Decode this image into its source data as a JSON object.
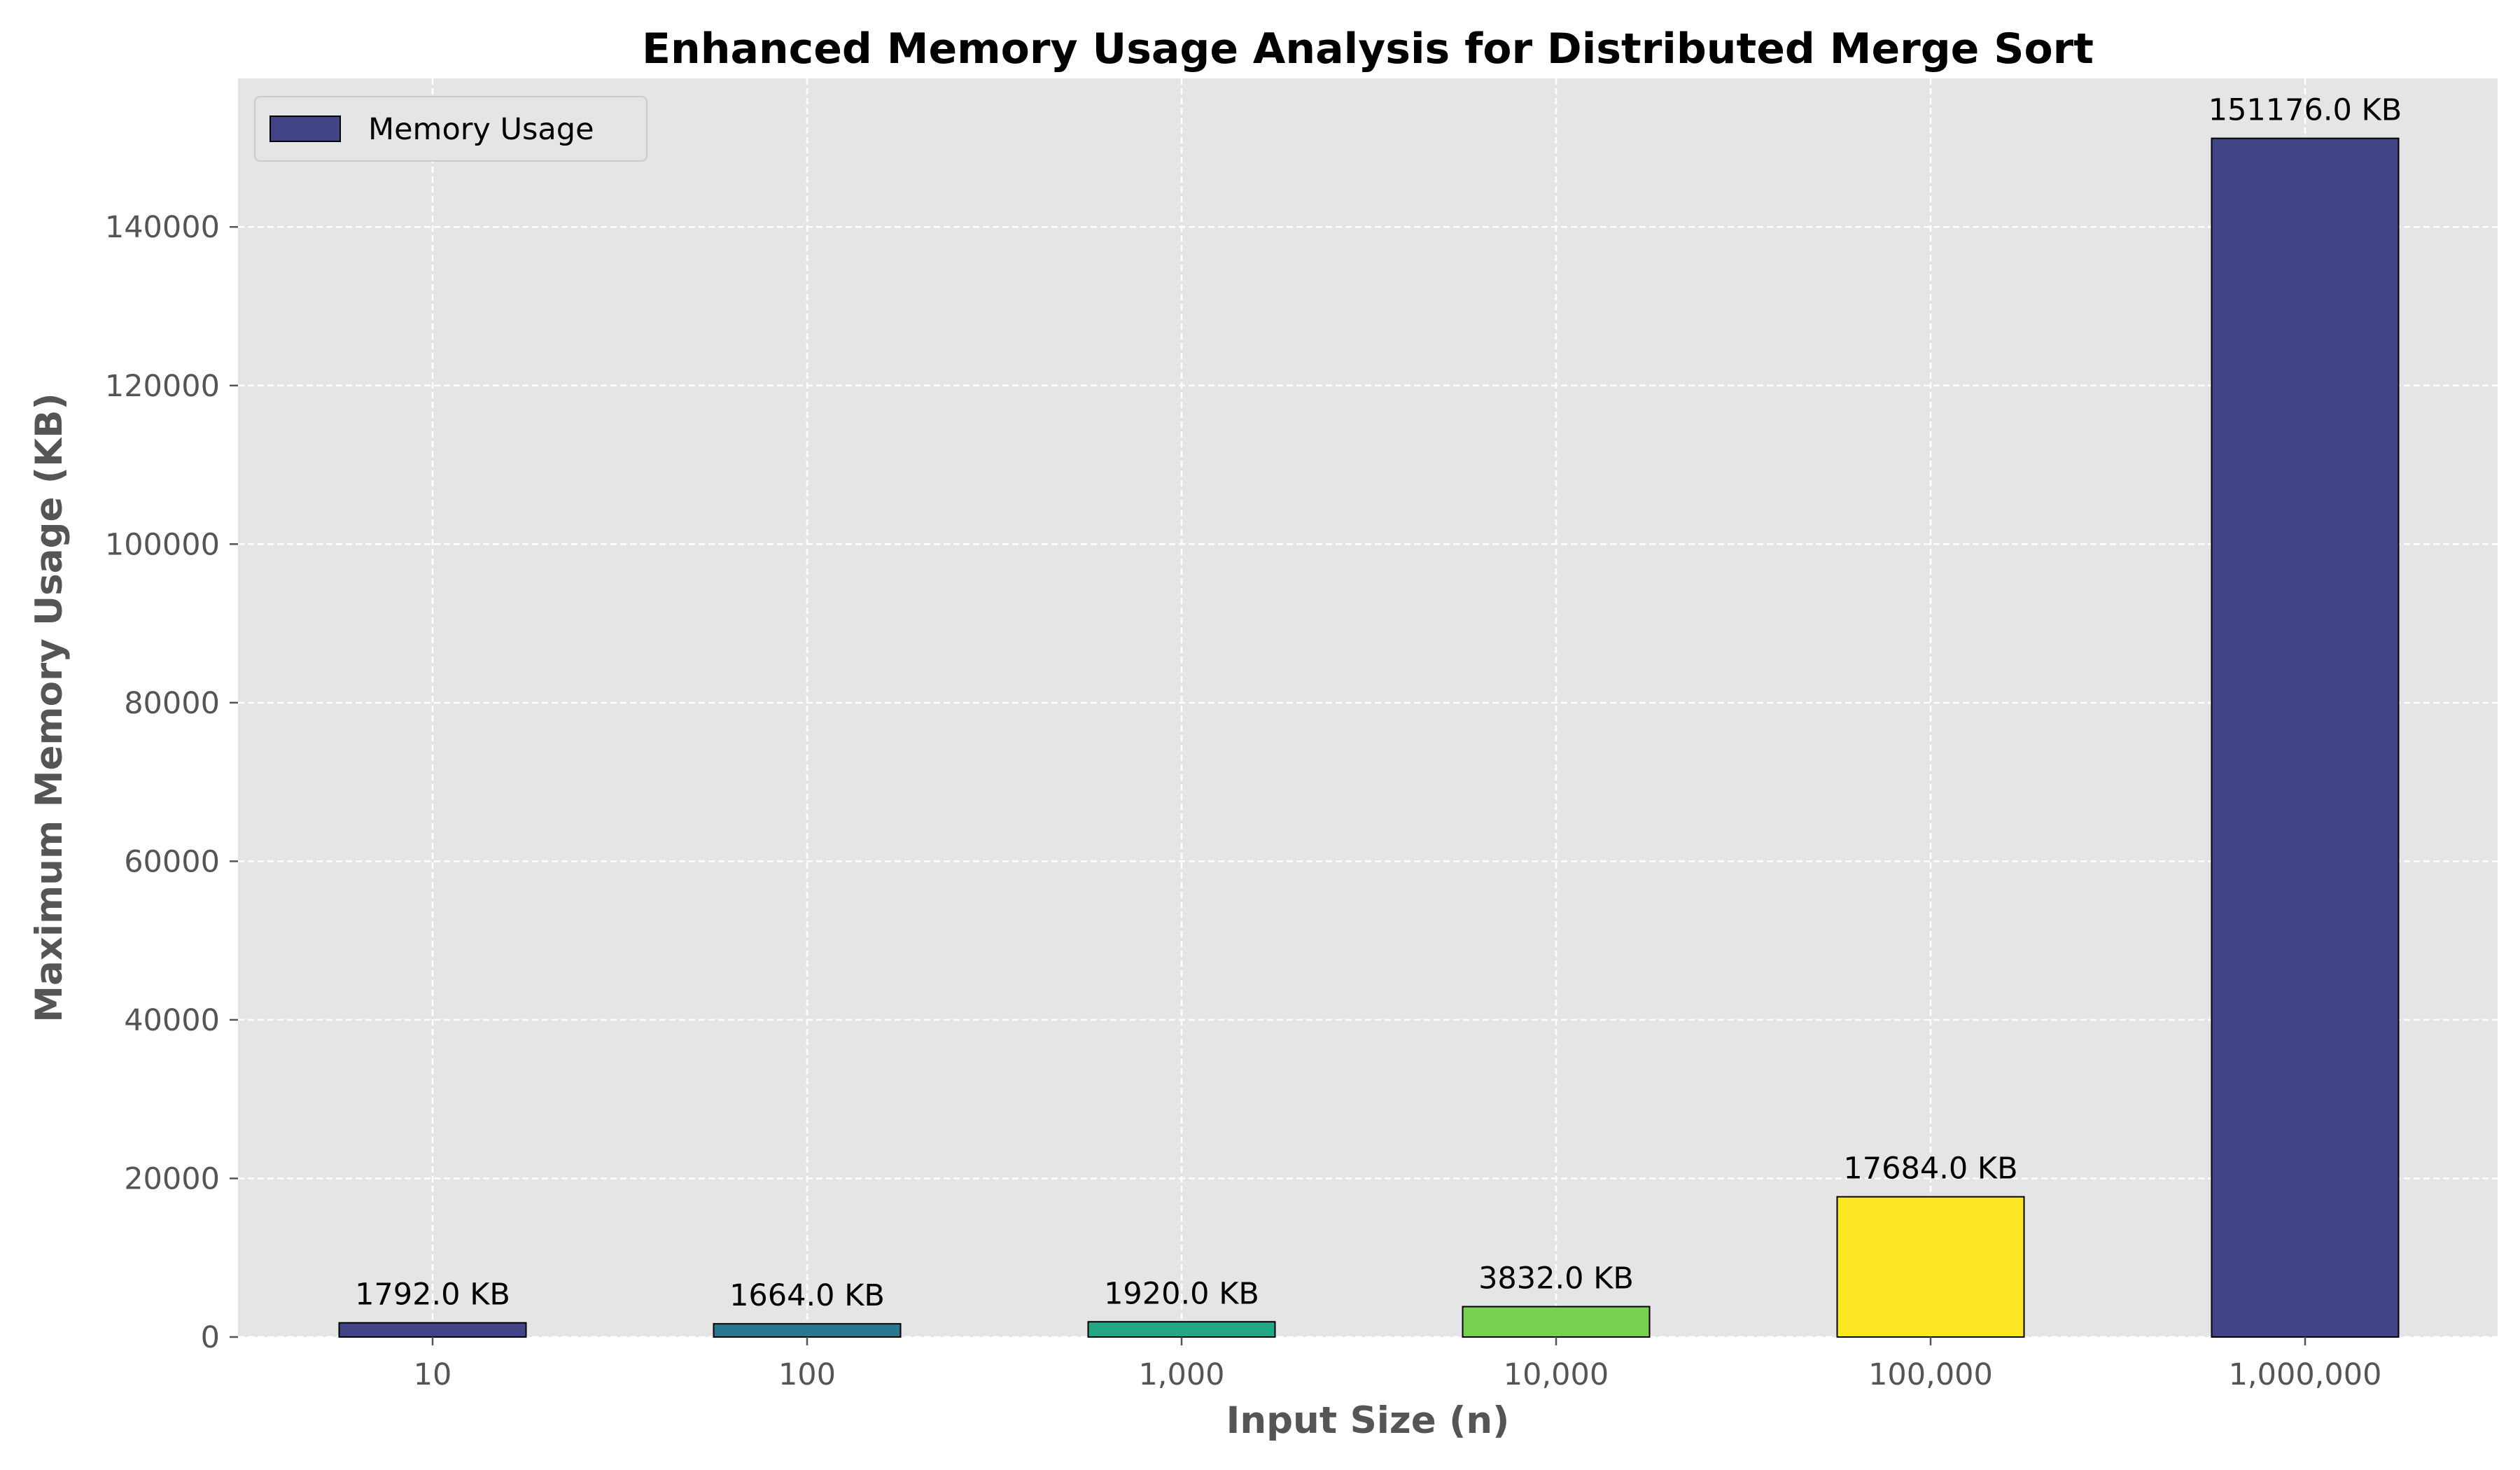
{
  "chart_data": {
    "type": "bar",
    "title": "Enhanced Memory Usage Analysis for Distributed Merge Sort",
    "xlabel": "Input Size (n)",
    "ylabel": "Maximum Memory Usage (KB)",
    "categories": [
      "10",
      "100",
      "1,000",
      "10,000",
      "100,000",
      "1,000,000"
    ],
    "series": [
      {
        "name": "Memory Usage",
        "values": [
          1792.0,
          1664.0,
          1920.0,
          3832.0,
          17684.0,
          151176.0
        ],
        "colors": [
          "#414487",
          "#2a788e",
          "#22a884",
          "#7ad151",
          "#fde725",
          "#414487"
        ]
      }
    ],
    "data_labels": [
      "1792.0 KB",
      "1664.0 KB",
      "1920.0 KB",
      "3832.0 KB",
      "17684.0 KB",
      "151176.0 KB"
    ],
    "yticks": [
      0,
      20000,
      40000,
      60000,
      80000,
      100000,
      120000,
      140000
    ],
    "ytick_labels": [
      "0",
      "20000",
      "40000",
      "60000",
      "80000",
      "100000",
      "120000",
      "140000"
    ],
    "ylim": [
      0,
      158734.8
    ],
    "grid": true,
    "legend_position": "top-left",
    "legend_color": "#414487",
    "background_color": "#e5e5e5",
    "bar_edge_color": "#000000"
  }
}
